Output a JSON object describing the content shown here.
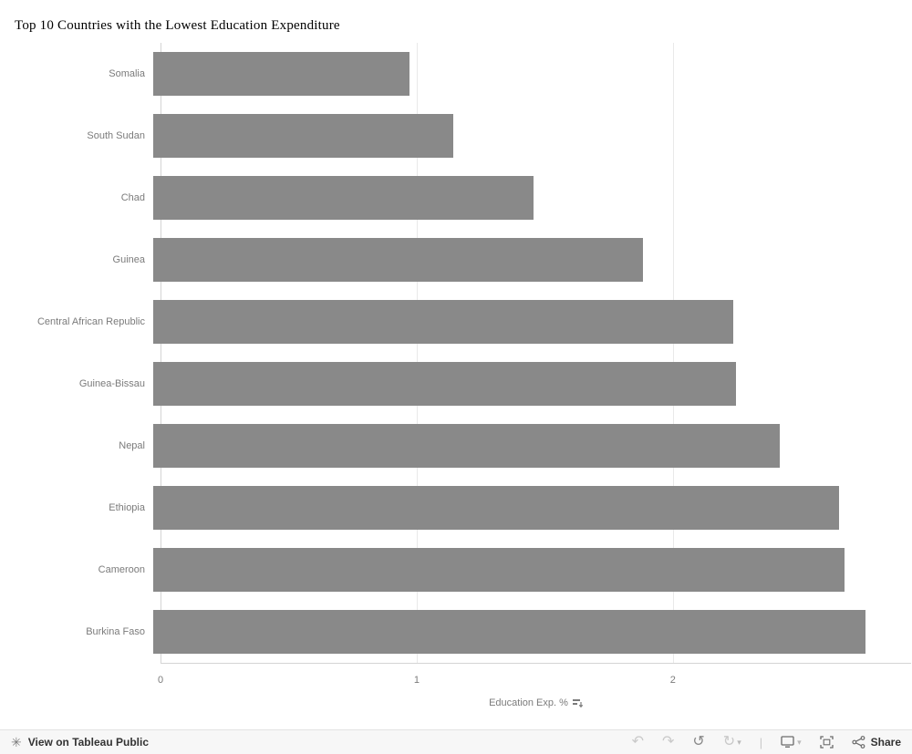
{
  "title": "Top 10 Countries with the Lowest Education Expenditure",
  "chart_data": {
    "type": "bar",
    "orientation": "horizontal",
    "title": "Top 10 Countries with the Lowest Education Expenditure",
    "categories": [
      "Somalia",
      "South Sudan",
      "Chad",
      "Guinea",
      "Central African Republic",
      "Guinea-Bissau",
      "Nepal",
      "Ethiopia",
      "Cameroon",
      "Burkina Faso"
    ],
    "values": [
      0.99,
      1.16,
      1.47,
      1.89,
      2.24,
      2.25,
      2.42,
      2.65,
      2.67,
      2.75
    ],
    "xlabel": "Education Exp. %",
    "ylabel": "",
    "xlim": [
      0,
      2.93
    ],
    "xticks": [
      0,
      1,
      2
    ],
    "bar_color": "#898989",
    "grid": "vertical-light",
    "legend": "none"
  },
  "axis": {
    "label": "Education Exp. %"
  },
  "toolbar": {
    "view_label": "View on Tableau Public",
    "share_label": "Share",
    "icons": {
      "logo": "tableau-logo-icon",
      "undo": "undo-icon",
      "redo": "redo-icon",
      "reset": "reset-icon",
      "replay": "replay-icon",
      "download": "download-device-icon",
      "fullscreen": "fullscreen-icon",
      "share": "share-icon"
    }
  }
}
